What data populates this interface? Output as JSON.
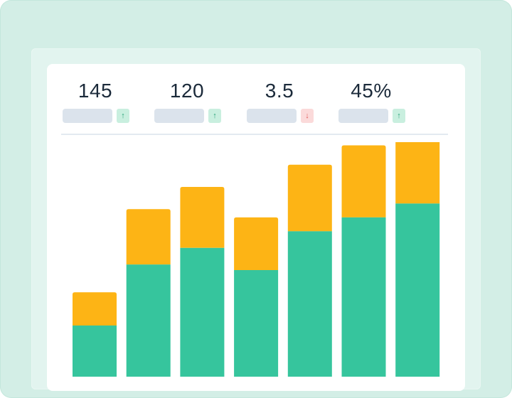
{
  "stats": [
    {
      "value": "145",
      "trend": "up",
      "trend_icon": "arrow-up-icon"
    },
    {
      "value": "120",
      "trend": "up",
      "trend_icon": "arrow-up-icon"
    },
    {
      "value": "3.5",
      "trend": "down",
      "trend_icon": "arrow-down-icon"
    },
    {
      "value": "45%",
      "trend": "up",
      "trend_icon": "arrow-up-icon"
    }
  ],
  "colors": {
    "base": "#36c59d",
    "top": "#fdb415",
    "up": "#2aa37a",
    "down": "#e05a5a"
  },
  "chart_data": {
    "type": "bar",
    "stacked": true,
    "grid": false,
    "categories": [
      "",
      "",
      "",
      "",
      "",
      "",
      ""
    ],
    "series": [
      {
        "values": [
          30,
          52,
          58,
          50,
          64,
          69,
          74
        ]
      },
      {
        "values": [
          12,
          20,
          22,
          19,
          24,
          26,
          28
        ]
      }
    ],
    "ylim": [
      0,
      100
    ]
  }
}
